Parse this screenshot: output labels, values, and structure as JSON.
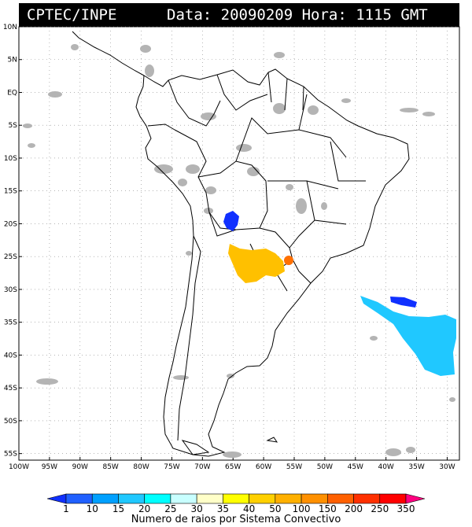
{
  "header": {
    "source": "CPTEC/INPE",
    "datetime": "Data: 20090209 Hora: 1115 GMT"
  },
  "map": {
    "lat_labels": [
      "10N",
      "5N",
      "EQ",
      "5S",
      "10S",
      "15S",
      "20S",
      "25S",
      "30S",
      "35S",
      "40S",
      "45S",
      "50S",
      "55S"
    ],
    "lon_labels": [
      "100W",
      "95W",
      "90W",
      "85W",
      "80W",
      "75W",
      "70W",
      "65W",
      "60W",
      "55W",
      "50W",
      "45W",
      "40W",
      "35W",
      "30W"
    ],
    "lat_range": [
      10,
      -56
    ],
    "lon_range": [
      -100,
      -28
    ]
  },
  "legend": {
    "ticks": [
      "1",
      "10",
      "15",
      "20",
      "25",
      "30",
      "35",
      "40",
      "50",
      "100",
      "150",
      "200",
      "250",
      "350"
    ],
    "colors": [
      "#1030ff",
      "#2060ff",
      "#00a0ff",
      "#20c8ff",
      "#00ffff",
      "#c8ffff",
      "#ffffc8",
      "#ffff00",
      "#ffd000",
      "#ffb000",
      "#ff9000",
      "#ff6000",
      "#ff3000",
      "#ff0000",
      "#ff0080"
    ],
    "title": "Numero de raios por Sistema Convectivo"
  },
  "colors": {
    "cloud_gray": "#b4b4b4",
    "header_bg": "#000000"
  }
}
